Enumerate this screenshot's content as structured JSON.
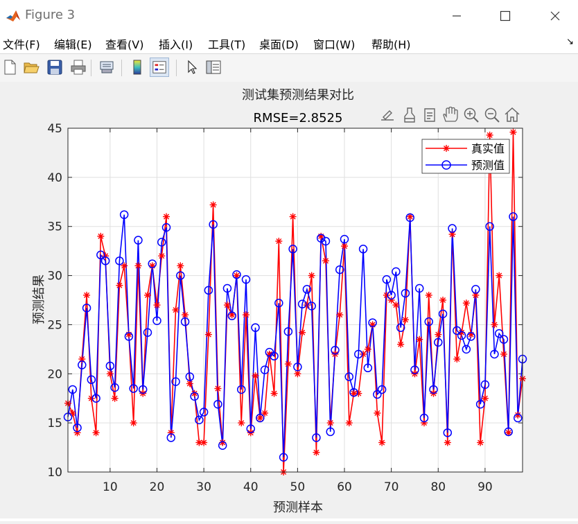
{
  "window": {
    "title": "Figure 3",
    "minimize_icon": "minimize-icon",
    "maximize_icon": "maximize-icon",
    "close_icon": "close-icon",
    "app_icon": "matlab-logo-icon"
  },
  "menubar": {
    "items": [
      {
        "label": "文件(F)"
      },
      {
        "label": "编辑(E)"
      },
      {
        "label": "查看(V)"
      },
      {
        "label": "插入(I)"
      },
      {
        "label": "工具(T)"
      },
      {
        "label": "桌面(D)"
      },
      {
        "label": "窗口(W)"
      },
      {
        "label": "帮助(H)"
      }
    ],
    "dock_arrow": "↘"
  },
  "toolbar": {
    "buttons": [
      {
        "icon": "new-figure-icon"
      },
      {
        "icon": "open-file-icon"
      },
      {
        "icon": "save-icon"
      },
      {
        "icon": "print-icon"
      },
      {
        "icon": "link-plot-icon"
      },
      {
        "icon": "insert-colorbar-icon"
      },
      {
        "icon": "insert-legend-icon"
      },
      {
        "icon": "edit-pointer-icon"
      },
      {
        "icon": "property-inspector-icon"
      }
    ]
  },
  "axes_toolbar": {
    "buttons": [
      {
        "icon": "export-icon"
      },
      {
        "icon": "brush-icon"
      },
      {
        "icon": "data-tips-icon"
      },
      {
        "icon": "pan-hand-icon"
      },
      {
        "icon": "zoom-in-icon"
      },
      {
        "icon": "zoom-out-icon"
      },
      {
        "icon": "home-restore-icon"
      }
    ]
  },
  "chart_data": {
    "type": "line",
    "title": "测试集预测结果对比",
    "subtitle": "RMSE=2.8525",
    "xlabel": "预测样本",
    "ylabel": "预测结果",
    "xlim": [
      1,
      98
    ],
    "ylim": [
      10,
      45
    ],
    "xticks": [
      10,
      20,
      30,
      40,
      50,
      60,
      70,
      80,
      90
    ],
    "yticks": [
      10,
      15,
      20,
      25,
      30,
      35,
      40,
      45
    ],
    "grid": true,
    "legend_position": "top-right",
    "x": [
      1,
      2,
      3,
      4,
      5,
      6,
      7,
      8,
      9,
      10,
      11,
      12,
      13,
      14,
      15,
      16,
      17,
      18,
      19,
      20,
      21,
      22,
      23,
      24,
      25,
      26,
      27,
      28,
      29,
      30,
      31,
      32,
      33,
      34,
      35,
      36,
      37,
      38,
      39,
      40,
      41,
      42,
      43,
      44,
      45,
      46,
      47,
      48,
      49,
      50,
      51,
      52,
      53,
      54,
      55,
      56,
      57,
      58,
      59,
      60,
      61,
      62,
      63,
      64,
      65,
      66,
      67,
      68,
      69,
      70,
      71,
      72,
      73,
      74,
      75,
      76,
      77,
      78,
      79,
      80,
      81,
      82,
      83,
      84,
      85,
      86,
      87,
      88,
      89,
      90,
      91,
      92,
      93,
      94,
      95,
      96,
      97,
      98
    ],
    "series": [
      {
        "name": "真实值",
        "color": "#ff0000",
        "marker": "asterisk",
        "values": [
          17,
          16,
          14,
          21.5,
          28,
          17.5,
          14,
          34,
          32,
          20,
          17.5,
          29,
          31,
          24,
          15,
          31,
          18,
          28,
          31,
          27,
          32,
          36,
          14,
          26.5,
          31,
          26,
          19,
          18,
          13,
          13,
          24,
          37.2,
          18.5,
          13,
          27,
          26,
          30,
          15,
          26,
          14,
          19.8,
          15.5,
          16,
          22,
          18,
          33.5,
          10,
          21,
          36,
          20,
          24.2,
          27,
          30,
          12,
          34,
          31.5,
          15,
          22,
          26,
          33,
          15,
          18,
          18,
          22,
          22.5,
          25,
          16,
          13,
          28,
          27.5,
          27,
          23,
          25.5,
          36,
          20,
          23.5,
          15,
          28,
          18,
          24,
          27.5,
          13,
          34.2,
          21.5,
          24.2,
          27.2,
          24,
          28,
          13,
          17.5,
          44.3,
          25,
          30,
          22,
          14,
          44.6,
          15.8,
          19.5
        ]
      },
      {
        "name": "预测值",
        "color": "#0000ff",
        "marker": "circle",
        "values": [
          15.6,
          18.4,
          14.5,
          20.9,
          26.7,
          19.4,
          17.5,
          32.1,
          31.5,
          20.8,
          18.6,
          31.5,
          36.2,
          23.8,
          18.5,
          33.6,
          18.4,
          24.2,
          31.2,
          25.4,
          33.4,
          34.9,
          13.5,
          19.2,
          30,
          25.3,
          19.7,
          17.7,
          15.3,
          16.1,
          28.5,
          35.2,
          16.9,
          12.7,
          28.7,
          25.9,
          30.1,
          18.4,
          29.6,
          14.4,
          24.7,
          15.5,
          20.4,
          22.2,
          21.8,
          27.2,
          11.5,
          24.3,
          32.7,
          20.7,
          27.1,
          28.6,
          26.9,
          13.5,
          33.8,
          33.5,
          14.1,
          22.4,
          30.6,
          33.7,
          19.7,
          18.1,
          22,
          32.7,
          20.6,
          25.2,
          17.9,
          18.4,
          29.6,
          28,
          30.4,
          24.7,
          28.2,
          35.9,
          20.4,
          28.7,
          15.5,
          25.3,
          18.4,
          23.2,
          26.1,
          14,
          34.8,
          24.4,
          23.9,
          22.5,
          23.8,
          28.6,
          16.9,
          18.9,
          35,
          22,
          24.1,
          23.5,
          14.1,
          36,
          15.5,
          21.5
        ]
      }
    ]
  }
}
